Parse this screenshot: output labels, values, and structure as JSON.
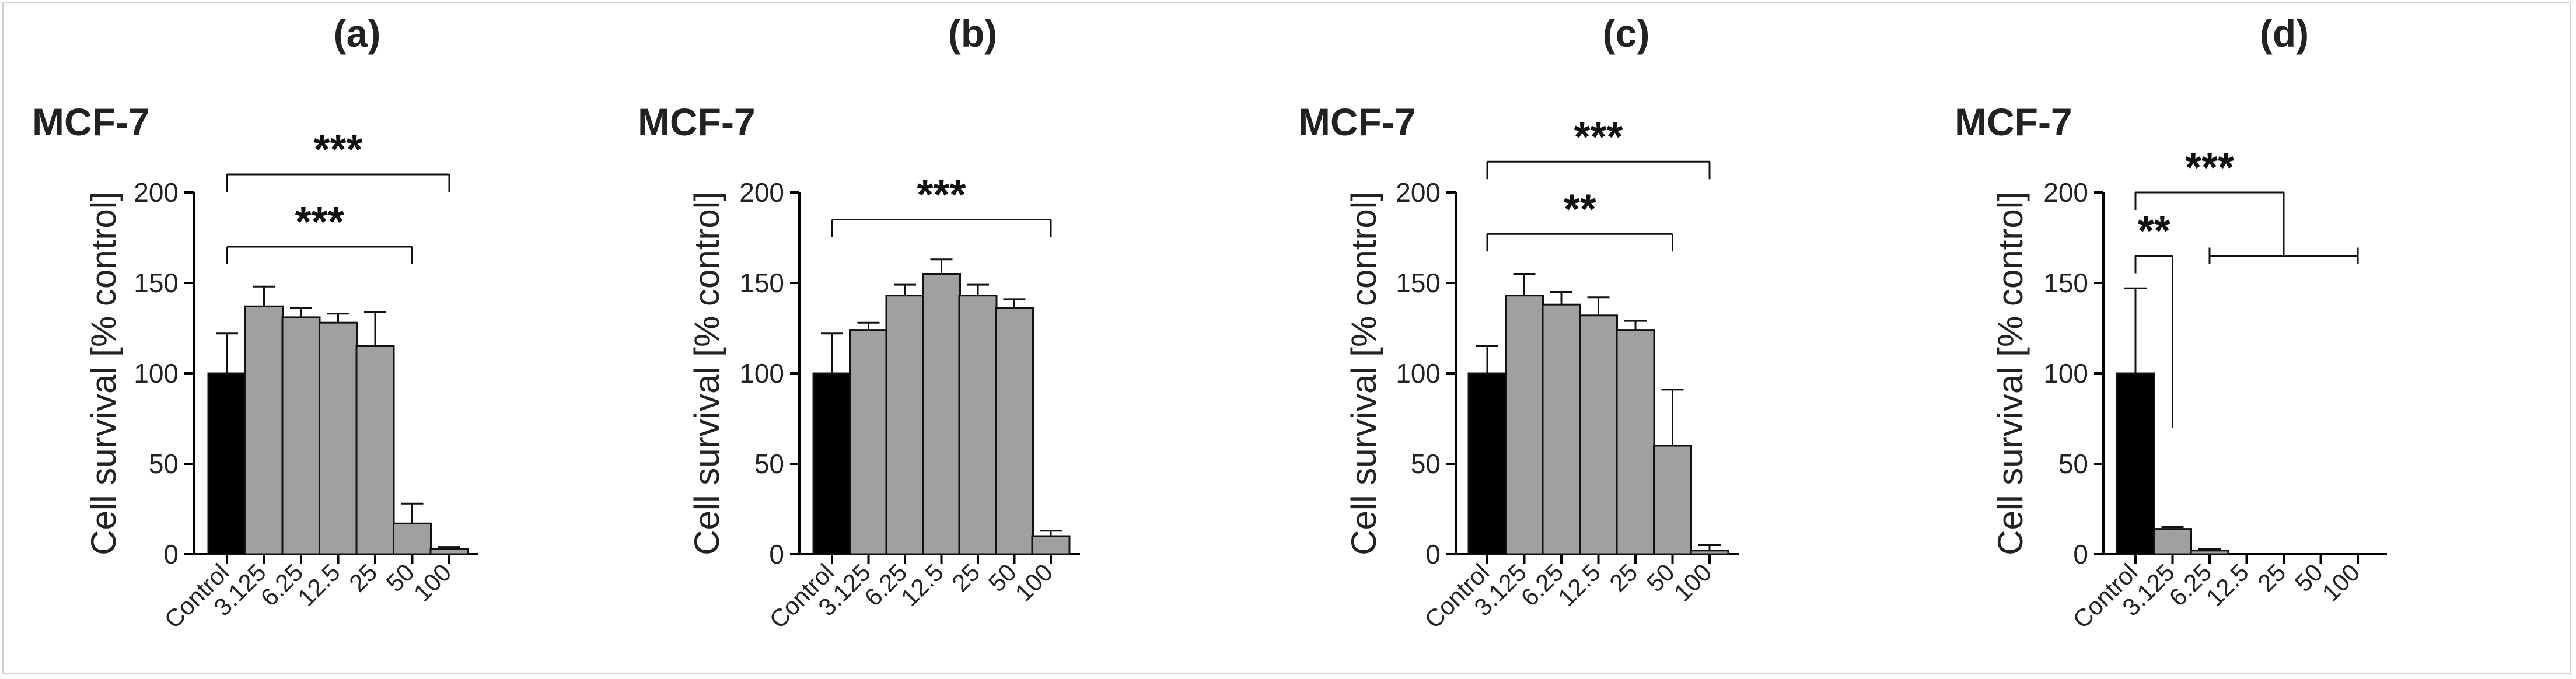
{
  "chart_data": [
    {
      "type": "bar",
      "panel": "(a)",
      "title": "MCF-7",
      "ylabel": "Cell survival [% control]",
      "xlabel": "",
      "categories": [
        "Control",
        "3.125",
        "6.25",
        "12.5",
        "25",
        "50",
        "100"
      ],
      "values": [
        100,
        137,
        131,
        128,
        115,
        17,
        3
      ],
      "errors": [
        22,
        11,
        5,
        5,
        19,
        11,
        1
      ],
      "ylim": [
        0,
        200
      ],
      "yticks": [
        0,
        50,
        100,
        150,
        200
      ],
      "significance": [
        {
          "label": "***",
          "from": "Control",
          "to": "50",
          "y": 170
        },
        {
          "label": "***",
          "from": "Control",
          "to": "100",
          "y": 210
        }
      ]
    },
    {
      "type": "bar",
      "panel": "(b)",
      "title": "MCF-7",
      "ylabel": "Cell survival [% control]",
      "xlabel": "",
      "categories": [
        "Control",
        "3.125",
        "6.25",
        "12.5",
        "25",
        "50",
        "100"
      ],
      "values": [
        100,
        124,
        143,
        155,
        143,
        136,
        10
      ],
      "errors": [
        22,
        4,
        6,
        8,
        6,
        5,
        3
      ],
      "ylim": [
        0,
        200
      ],
      "yticks": [
        0,
        50,
        100,
        150,
        200
      ],
      "significance": [
        {
          "label": "***",
          "from": "Control",
          "to": "100",
          "y": 185
        }
      ]
    },
    {
      "type": "bar",
      "panel": "(c)",
      "title": "MCF-7",
      "ylabel": "Cell survival [% control]",
      "xlabel": "",
      "categories": [
        "Control",
        "3.125",
        "6.25",
        "12.5",
        "25",
        "50",
        "100"
      ],
      "values": [
        100,
        143,
        138,
        132,
        124,
        60,
        2
      ],
      "errors": [
        15,
        12,
        7,
        10,
        5,
        31,
        3
      ],
      "ylim": [
        0,
        200
      ],
      "yticks": [
        0,
        50,
        100,
        150,
        200
      ],
      "significance": [
        {
          "label": "**",
          "from": "Control",
          "to": "50",
          "y": 177
        },
        {
          "label": "***",
          "from": "Control",
          "to": "100",
          "y": 217
        }
      ]
    },
    {
      "type": "bar",
      "panel": "(d)",
      "title": "MCF-7",
      "ylabel": "Cell survival [% control]",
      "xlabel": "",
      "categories": [
        "Control",
        "3.125",
        "6.25",
        "12.5",
        "25",
        "50",
        "100"
      ],
      "values": [
        100,
        14,
        2,
        0,
        0,
        0,
        0
      ],
      "errors": [
        47,
        1,
        1,
        0,
        0,
        0,
        0
      ],
      "ylim": [
        0,
        200
      ],
      "yticks": [
        0,
        50,
        100,
        150,
        200
      ],
      "significance": [
        {
          "label": "**",
          "from": "Control",
          "to": "3.125",
          "y": 165
        },
        {
          "label": "***",
          "from": "Control",
          "to": "6.25–100",
          "y": 200
        }
      ]
    }
  ]
}
